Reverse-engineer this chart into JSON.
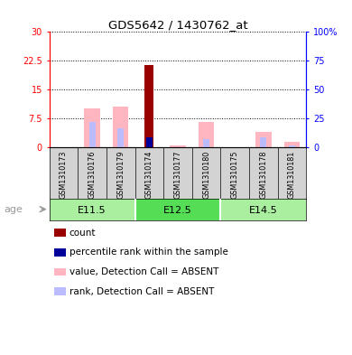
{
  "title": "GDS5642 / 1430762_at",
  "samples": [
    "GSM1310173",
    "GSM1310176",
    "GSM1310179",
    "GSM1310174",
    "GSM1310177",
    "GSM1310180",
    "GSM1310175",
    "GSM1310178",
    "GSM1310181"
  ],
  "groups": [
    {
      "label": "E11.5",
      "indices": [
        0,
        1,
        2
      ],
      "color": "#AAEEA0"
    },
    {
      "label": "E12.5",
      "indices": [
        3,
        4,
        5
      ],
      "color": "#55DD55"
    },
    {
      "label": "E14.5",
      "indices": [
        6,
        7,
        8
      ],
      "color": "#AAEEA0"
    }
  ],
  "value_absent": [
    0.0,
    10.0,
    10.5,
    0.0,
    0.5,
    6.5,
    0.0,
    4.0,
    1.5
  ],
  "rank_absent": [
    0.0,
    6.5,
    5.0,
    0.0,
    0.0,
    2.0,
    0.0,
    2.5,
    0.5
  ],
  "count_value": [
    0.0,
    0.0,
    0.0,
    21.5,
    0.0,
    0.0,
    0.0,
    0.0,
    0.0
  ],
  "percentile_rank_raw": [
    0.0,
    0.0,
    0.0,
    8.5,
    0.0,
    0.0,
    0.0,
    0.0,
    0.0
  ],
  "ylim_left": [
    0,
    30
  ],
  "ylim_right": [
    0,
    100
  ],
  "yticks_left": [
    0,
    7.5,
    15,
    22.5,
    30
  ],
  "ytick_labels_left": [
    "0",
    "7.5",
    "15",
    "22.5",
    "30"
  ],
  "yticks_right": [
    0,
    25,
    50,
    75,
    100
  ],
  "ytick_labels_right": [
    "0",
    "25",
    "50",
    "75",
    "100%"
  ],
  "color_count": "#990000",
  "color_percentile": "#000099",
  "color_value_absent": "#FFB6C1",
  "color_rank_absent": "#BBBBFF",
  "bg_sample": "#D3D3D3",
  "age_label": "age",
  "legend_items": [
    {
      "label": "count",
      "color": "#990000"
    },
    {
      "label": "percentile rank within the sample",
      "color": "#000099"
    },
    {
      "label": "value, Detection Call = ABSENT",
      "color": "#FFB6C1"
    },
    {
      "label": "rank, Detection Call = ABSENT",
      "color": "#BBBBFF"
    }
  ]
}
